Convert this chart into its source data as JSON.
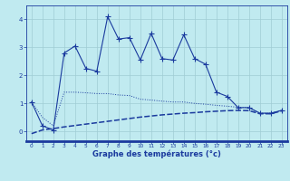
{
  "x_ticks": [
    0,
    1,
    2,
    3,
    4,
    5,
    6,
    7,
    8,
    9,
    10,
    11,
    12,
    13,
    14,
    15,
    16,
    17,
    18,
    19,
    20,
    21,
    22,
    23
  ],
  "line1_x": [
    0,
    1,
    2,
    3,
    4,
    5,
    6,
    7,
    8,
    9,
    10,
    11,
    12,
    13,
    14,
    15,
    16,
    17,
    18,
    19,
    20,
    21,
    22,
    23
  ],
  "line1_y": [
    1.05,
    0.2,
    0.05,
    2.8,
    3.05,
    2.25,
    2.15,
    4.1,
    3.3,
    3.35,
    2.55,
    3.5,
    2.6,
    2.55,
    3.45,
    2.6,
    2.4,
    1.4,
    1.25,
    0.85,
    0.85,
    0.65,
    0.65,
    0.75
  ],
  "line2_x": [
    0,
    1,
    2,
    3,
    4,
    5,
    6,
    7,
    8,
    9,
    10,
    11,
    12,
    13,
    14,
    15,
    16,
    17,
    18,
    19,
    20,
    21,
    22,
    23
  ],
  "line2_y": [
    1.05,
    0.5,
    0.2,
    1.4,
    1.4,
    1.38,
    1.35,
    1.35,
    1.3,
    1.28,
    1.15,
    1.12,
    1.08,
    1.05,
    1.05,
    1.0,
    0.97,
    0.93,
    0.9,
    0.86,
    0.85,
    0.65,
    0.65,
    0.75
  ],
  "line3_x": [
    0,
    1,
    2,
    3,
    4,
    5,
    6,
    7,
    8,
    9,
    10,
    11,
    12,
    13,
    14,
    15,
    16,
    17,
    18,
    19,
    20,
    21,
    22,
    23
  ],
  "line3_y": [
    -0.08,
    0.05,
    0.1,
    0.16,
    0.21,
    0.26,
    0.31,
    0.36,
    0.41,
    0.46,
    0.51,
    0.55,
    0.59,
    0.62,
    0.65,
    0.67,
    0.7,
    0.72,
    0.74,
    0.75,
    0.74,
    0.63,
    0.63,
    0.73
  ],
  "line_color": "#1a3a9e",
  "bg_color": "#c0eaf0",
  "grid_color": "#a0ccd4",
  "xlabel": "Graphe des températures (°c)",
  "ylabel_ticks": [
    0,
    1,
    2,
    3,
    4
  ],
  "ylim": [
    -0.35,
    4.5
  ],
  "xlim": [
    -0.5,
    23.5
  ]
}
